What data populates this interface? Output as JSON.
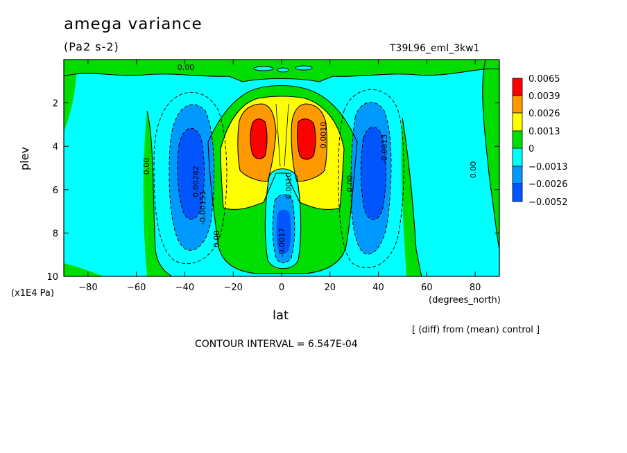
{
  "chart_data": {
    "type": "heatmap",
    "title": "amega variance",
    "units_label": "(Pa2 s-2)",
    "run_label": "T39L96_eml_3kw1",
    "xlabel": "lat",
    "x_units": "(degrees_north)",
    "ylabel": "plev",
    "y_units": "(x1E4 Pa)",
    "xlim": [
      -90,
      90
    ],
    "ylim": [
      10,
      0
    ],
    "x_ticks": [
      -80,
      -60,
      -40,
      -20,
      0,
      20,
      40,
      60,
      80
    ],
    "y_ticks": [
      2,
      4,
      6,
      8,
      10
    ],
    "legend": {
      "position": "right",
      "levels": [
        "0.0065",
        "0.0039",
        "0.0026",
        "0.0013",
        "0",
        "-0.0013",
        "-0.0026",
        "-0.0052"
      ],
      "colors": [
        "#ff0000",
        "#ff9900",
        "#ffff00",
        "#00dd00",
        "#00ffff",
        "#0099ff",
        "#0055ff"
      ]
    },
    "contour_labels": [
      "0.00",
      "0.00",
      "0.00282",
      "-0.00151",
      "0.00",
      "0.0010",
      "-0.0017",
      "0.0010",
      "0.00",
      "-0.0013",
      "0.00"
    ],
    "diff_note": "[ (diff) from (mean) control ]",
    "contour_interval": "CONTOUR INTERVAL = 6.547E-04"
  }
}
